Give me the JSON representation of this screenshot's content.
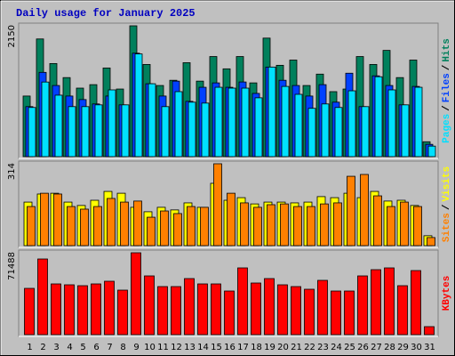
{
  "title": "Daily usage for January 2025",
  "chart_data": [
    {
      "type": "bar",
      "ylim": [
        0,
        2150
      ],
      "yticks": [
        2150
      ],
      "legend_separator": "/",
      "series": [
        {
          "name": "Hits",
          "color": "#00805c",
          "values": [
            996,
            1934,
            1530,
            1299,
            1126,
            1183,
            1457,
            1111,
            2150,
            1515,
            1169,
            1255,
            1544,
            1241,
            1645,
            1443,
            1645,
            1212,
            1948,
            1501,
            1587,
            1169,
            1356,
            1068,
            1111,
            1645,
            1515,
            1746,
            1299,
            1587,
            245
          ]
        },
        {
          "name": "Files",
          "color": "#0040ff",
          "values": [
            822,
            1385,
            1169,
            996,
            938,
            866,
            996,
            851,
            1700,
            1198,
            996,
            1241,
            909,
            1140,
            1212,
            1140,
            1227,
            1039,
            1472,
            1255,
            1169,
            996,
            1183,
            895,
            1371,
            822,
            1328,
            1169,
            851,
            1154,
            202
          ]
        },
        {
          "name": "Pages",
          "color": "#00e0ff",
          "values": [
            808,
            1226,
            1010,
            822,
            822,
            851,
            1097,
            851,
            1688,
            1198,
            822,
            1068,
            895,
            880,
            1140,
            1126,
            1126,
            967,
            1472,
            1154,
            1024,
            794,
            866,
            808,
            1082,
            822,
            1313,
            1097,
            851,
            1140,
            173
          ]
        }
      ]
    },
    {
      "type": "bar",
      "ylim": [
        0,
        314
      ],
      "yticks": [
        314
      ],
      "legend_separator": "/",
      "series": [
        {
          "name": "Visits",
          "color": "#ffff00",
          "values": [
            167,
            198,
            201,
            167,
            154,
            174,
            208,
            201,
            147,
            130,
            147,
            137,
            164,
            147,
            239,
            174,
            184,
            160,
            167,
            167,
            164,
            167,
            188,
            184,
            201,
            184,
            208,
            171,
            174,
            154,
            38
          ]
        },
        {
          "name": "Sites",
          "color": "#ff8000",
          "values": [
            150,
            201,
            198,
            150,
            140,
            150,
            181,
            167,
            171,
            109,
            133,
            123,
            150,
            147,
            314,
            201,
            164,
            147,
            157,
            160,
            150,
            150,
            160,
            164,
            266,
            273,
            191,
            150,
            167,
            150,
            31
          ]
        }
      ]
    },
    {
      "type": "bar",
      "ylim": [
        0,
        71488
      ],
      "yticks": [
        71488
      ],
      "categories": [
        "1",
        "2",
        "3",
        "4",
        "5",
        "6",
        "7",
        "8",
        "9",
        "10",
        "11",
        "12",
        "13",
        "14",
        "15",
        "16",
        "17",
        "18",
        "19",
        "20",
        "21",
        "22",
        "23",
        "24",
        "25",
        "26",
        "27",
        "28",
        "29",
        "30",
        "31"
      ],
      "category_colors": [
        "#000000",
        "#000000",
        "#000000",
        "#008060",
        "#008060",
        "#000000",
        "#000000",
        "#000000",
        "#000000",
        "#000000",
        "#008060",
        "#008060",
        "#000000",
        "#000000",
        "#000000",
        "#000000",
        "#000000",
        "#008060",
        "#008060",
        "#000000",
        "#000000",
        "#000000",
        "#000000",
        "#000000",
        "#008060",
        "#008060",
        "#000000",
        "#000000",
        "#000000",
        "#000000",
        "#000000"
      ],
      "series": [
        {
          "name": "KBytes",
          "color": "#ff0000",
          "values": [
            40405,
            66049,
            44292,
            43514,
            42737,
            44292,
            46623,
            38852,
            71488,
            51284,
            41960,
            41960,
            48954,
            44292,
            44292,
            38075,
            58278,
            45069,
            48954,
            43514,
            41960,
            39629,
            47400,
            38075,
            38075,
            51284,
            56724,
            58278,
            42737,
            55947,
            6993
          ]
        }
      ]
    }
  ]
}
